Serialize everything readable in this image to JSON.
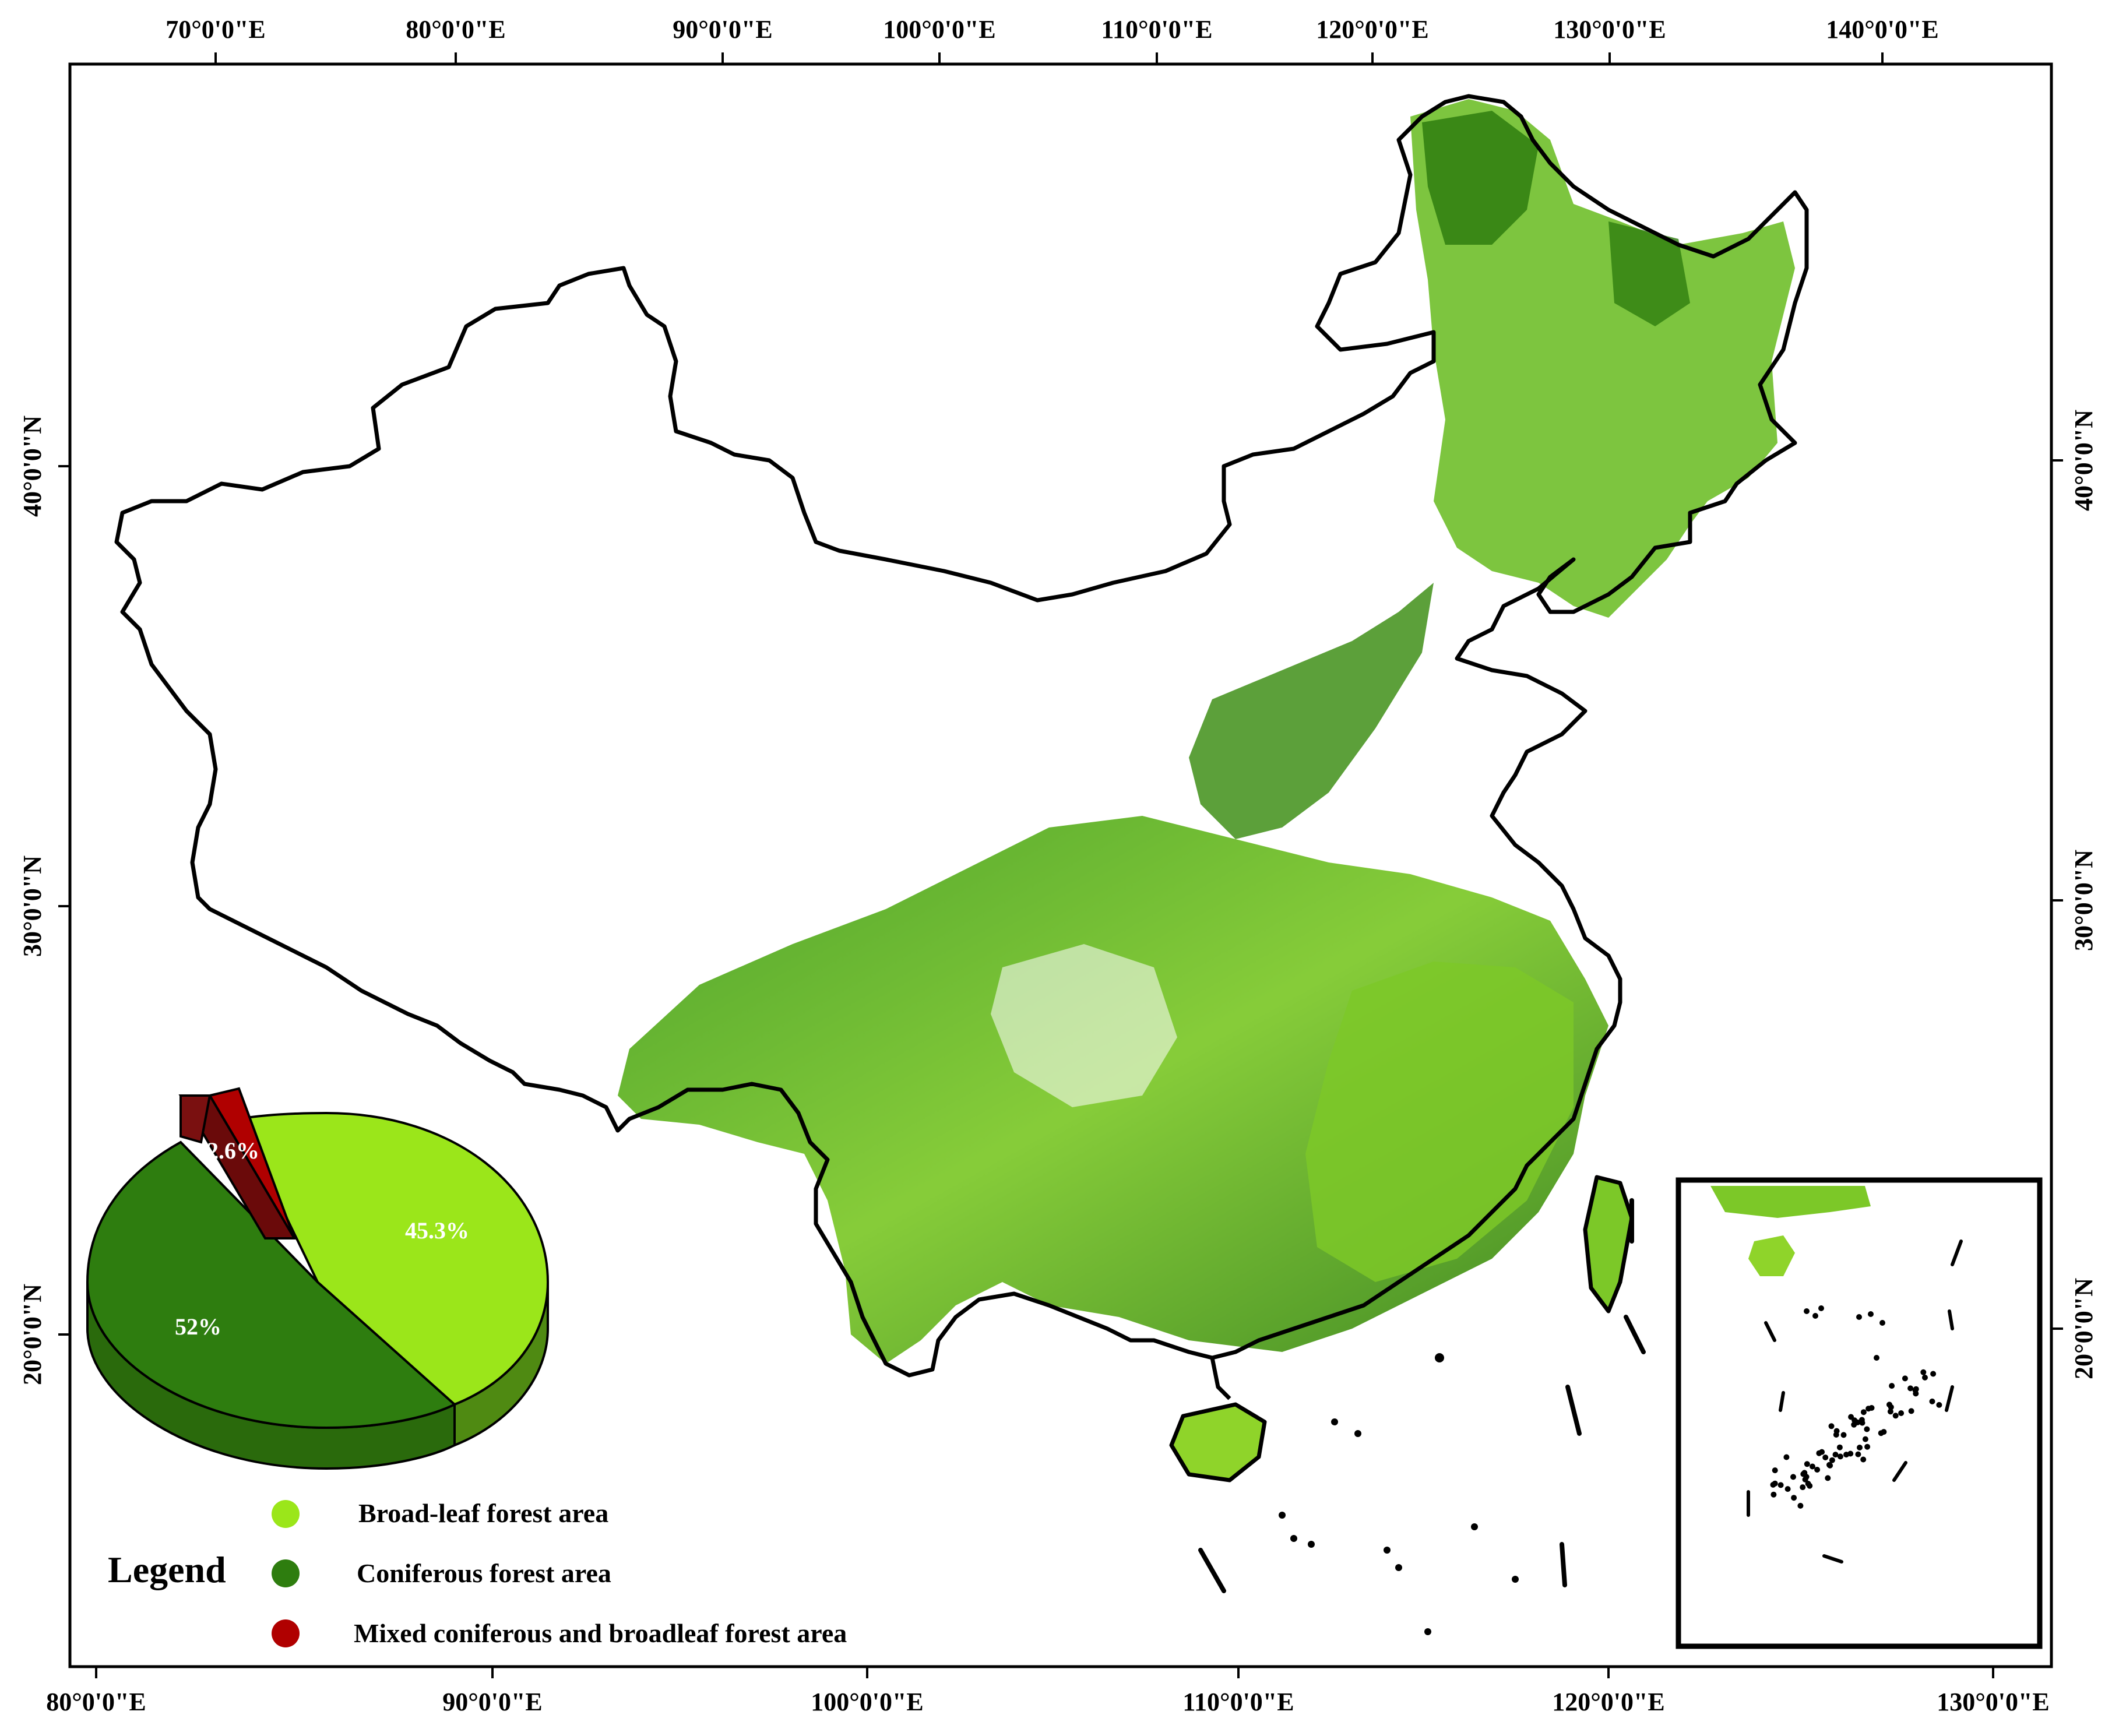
{
  "top_axis": {
    "labels": [
      "70°0'0\"E",
      "80°0'0\"E",
      "90°0'0\"E",
      "100°0'0\"E",
      "110°0'0\"E",
      "120°0'0\"E",
      "130°0'0\"E",
      "140°0'0\"E"
    ]
  },
  "bottom_axis": {
    "labels": [
      "80°0'0\"E",
      "90°0'0\"E",
      "100°0'0\"E",
      "110°0'0\"E",
      "120°0'0\"E",
      "130°0'0\"E"
    ]
  },
  "left_axis": {
    "labels": [
      "40°0'0\"N",
      "30°0'0\"N",
      "20°0'0\"N"
    ]
  },
  "right_axis": {
    "labels": [
      "40°0'0\"N",
      "30°0'0\"N",
      "20°0'0\"N"
    ]
  },
  "legend": {
    "title": "Legend",
    "items": [
      {
        "label": "Broad-leaf forest area",
        "color": "#9be61a"
      },
      {
        "label": "Coniferous forest area",
        "color": "#2e7d0f"
      },
      {
        "label": "Mixed coniferous and broadleaf forest area",
        "color": "#b00000"
      }
    ]
  },
  "chart_data": {
    "type": "pie",
    "labels": [
      "Broad-leaf forest area",
      "Coniferous forest area",
      "Mixed coniferous and broadleaf forest area"
    ],
    "values": [
      45.3,
      52,
      2.6
    ],
    "value_labels": [
      "45.3%",
      "52%",
      "2.6%"
    ],
    "colors": [
      "#9be61a",
      "#2e7d0f",
      "#b00000"
    ],
    "exploded": [
      "Mixed coniferous and broadleaf forest area"
    ]
  }
}
